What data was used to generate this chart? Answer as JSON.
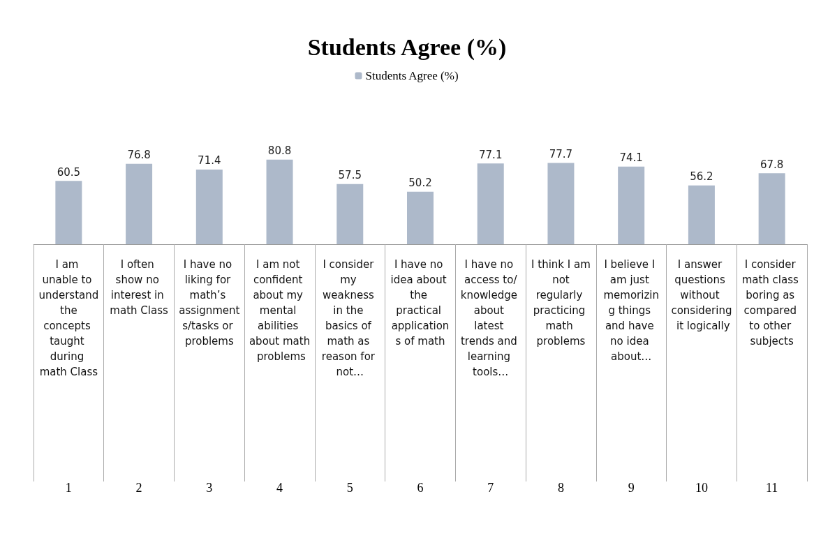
{
  "chart_data": {
    "type": "bar",
    "title": "Students Agree (%)",
    "categories": [
      "1",
      "2",
      "3",
      "4",
      "5",
      "6",
      "7",
      "8",
      "9",
      "10",
      "11"
    ],
    "series": [
      {
        "name": "Students Agree (%)",
        "color": "#adb9ca",
        "values": [
          60.5,
          76.8,
          71.4,
          80.8,
          57.5,
          50.2,
          77.1,
          77.7,
          74.1,
          56.2,
          67.8
        ]
      }
    ],
    "data_labels": true,
    "legend": "top",
    "annotations": [
      "I am unable to understand the concepts taught during math Class",
      "I often show no interest in math Class",
      "I have no liking for math’s assignments/tasks or problems",
      "I am not confident about my mental abilities about math problems",
      "I consider my weakness in the basics of math as reason for not…",
      "I have no idea about the practical applications of math",
      "I have no access to/knowledge about latest trends and learning tools…",
      "I think I am not regularly practicing math problems",
      "I believe I am just memorizing things and have no idea about…",
      "I answer questions without considering it logically",
      "I consider math class boring as compared to other subjects"
    ]
  }
}
